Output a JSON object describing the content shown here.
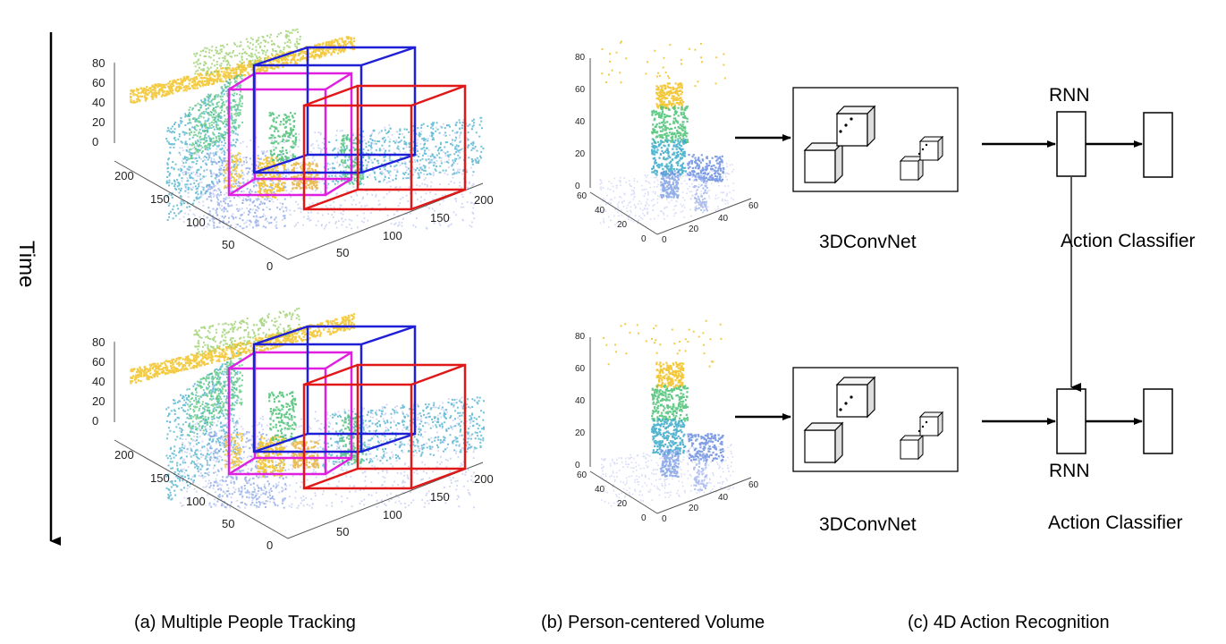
{
  "time_label": "Time",
  "captions": {
    "a": "(a) Multiple People Tracking",
    "b": "(b) Person-centered Volume",
    "c": "(c) 4D Action Recognition"
  },
  "network": {
    "conv_label": "3DConvNet",
    "rnn_label": "RNN",
    "classifier_label": "Action Classifier"
  },
  "tracking_plot": {
    "z_ticks": [
      "80",
      "60",
      "40",
      "20",
      "0"
    ],
    "y_ticks": [
      "200",
      "150",
      "100",
      "50",
      "0"
    ],
    "x_ticks": [
      "50",
      "100",
      "150",
      "200"
    ]
  },
  "volume_plot": {
    "z_ticks": [
      "80",
      "60",
      "40",
      "20",
      "0"
    ],
    "y_ticks": [
      "60",
      "40",
      "20",
      "0"
    ],
    "x_ticks": [
      "20",
      "40",
      "60"
    ]
  },
  "colors": {
    "box_blue": "#1f1fd6",
    "box_magenta": "#e020e0",
    "box_red": "#e01818",
    "cloud_yellow": "#f2c531",
    "cloud_green": "#52c47a",
    "cloud_cyan": "#35a8c8",
    "cloud_blue": "#6a8ee0"
  }
}
